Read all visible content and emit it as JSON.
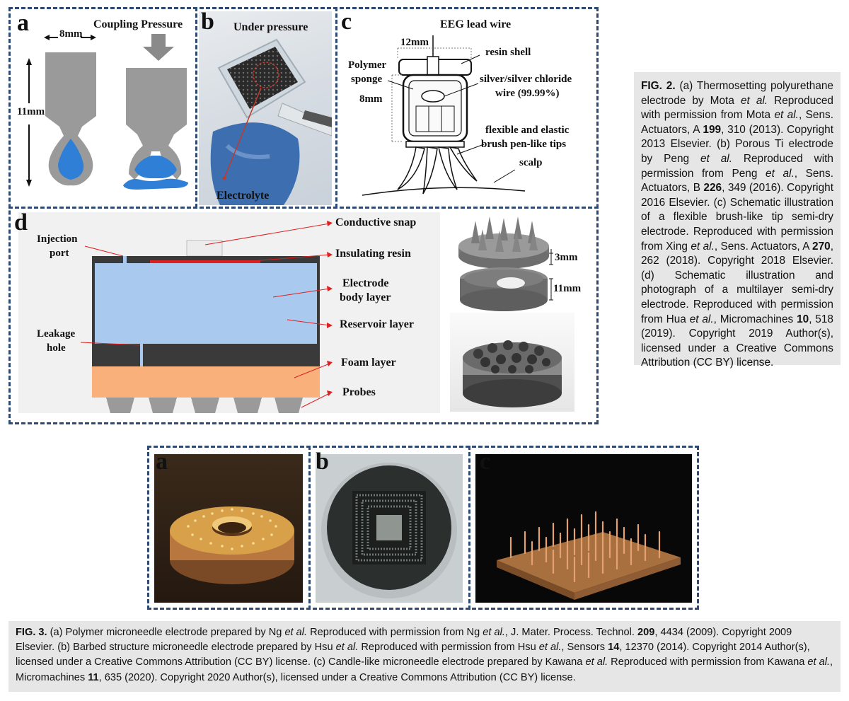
{
  "fig2": {
    "panel_labels": {
      "a": "a",
      "b": "b",
      "c": "c",
      "d": "d"
    },
    "panel_a": {
      "width_label": "8mm",
      "height_label": "11mm",
      "pressure_label": "Coupling Pressure"
    },
    "panel_b": {
      "top_label": "Under pressure",
      "bottom_label": "Electrolyte"
    },
    "panel_c": {
      "lead": "EEG lead wire",
      "width": "12mm",
      "shell": "resin shell",
      "sponge_1": "Polymer",
      "sponge_2": "sponge",
      "height": "8mm",
      "wire_1": "silver/silver chloride",
      "wire_2": "wire (99.99%)",
      "tips_1": "flexible and elastic",
      "tips_2": "brush pen-like tips",
      "scalp": "scalp"
    },
    "panel_d": {
      "injection_1": "Injection",
      "injection_2": "port",
      "snap": "Conductive snap",
      "resin": "Insulating resin",
      "body_1": "Electrode",
      "body_2": "body layer",
      "reservoir": "Reservoir layer",
      "leak_1": "Leakage",
      "leak_2": "hole",
      "foam": "Foam layer",
      "probes": "Probes",
      "dim_top": "3mm",
      "dim_bottom": "11mm"
    },
    "caption": {
      "label": "FIG. 2.",
      "s1": "(a) Thermosetting polyurethane electrode by Mota ",
      "s2": "et al.",
      "s3": " Reproduced with permission from Mota ",
      "s4": "et al.",
      "s5": ", Sens. Actuators, A ",
      "s6": "199",
      "s7": ", 310 (2013). Copyright 2013 Elsevier. (b) Porous Ti electrode by Peng ",
      "s8": "et al.",
      "s9": " Reproduced with permission from Peng ",
      "s10": "et al.",
      "s11": ", Sens. Actuators, B ",
      "s12": "226",
      "s13": ", 349 (2016). Copyright 2016 Elsevier. (c) Schematic illustration of a flexible brush-like tip semi-dry electrode. Reproduced with permission from Xing ",
      "s14": "et al.",
      "s15": ", Sens. Actuators, A ",
      "s16": "270",
      "s17": ", 262 (2018). Copyright 2018 Elsevier. (d) Schematic illustration and photograph of a multilayer semi-dry electrode. Reproduced with permission from Hua ",
      "s18": "et al.",
      "s19": ", Micromachines ",
      "s20": "10",
      "s21": ", 518 (2019). Copyright 2019 Author(s), licensed under a Creative Commons Attribution (CC BY) license."
    }
  },
  "fig3": {
    "panel_labels": {
      "a": "a",
      "b": "b",
      "c": "c"
    },
    "caption": {
      "label": "FIG. 3.",
      "s1": " (a) Polymer microneedle electrode prepared by Ng ",
      "s2": "et al.",
      "s3": " Reproduced with permission from Ng ",
      "s4": "et al.",
      "s5": ", J. Mater. Process. Technol. ",
      "s6": "209",
      "s7": ", 4434 (2009). Copyright 2009 Elsevier. (b) Barbed structure microneedle electrode prepared by Hsu ",
      "s8": "et al.",
      "s9": " Reproduced with permission from Hsu ",
      "s10": "et al.",
      "s11": ", Sensors ",
      "s12": "14",
      "s13": ", 12370 (2014). Copyright 2014 Author(s), licensed under a Creative Commons Attribution (CC BY) license. (c) Candle-like microneedle electrode prepared by Kawana ",
      "s14": "et al.",
      "s15": " Reproduced with permission from Kawana ",
      "s16": "et al.",
      "s17": ", Micromachines ",
      "s18": "11",
      "s19": ", 635 (2020). Copyright 2020 Author(s), licensed under a Creative Commons Attribution (CC BY) license."
    }
  },
  "colors": {
    "frame": "#2e4a73",
    "caption_bg": "#e6e6e6",
    "electrolyte_blue": "#2f7fd6",
    "reservoir_blue": "#a9c9ee",
    "foam_orange": "#f9b07a",
    "resin_red": "#e02020"
  }
}
